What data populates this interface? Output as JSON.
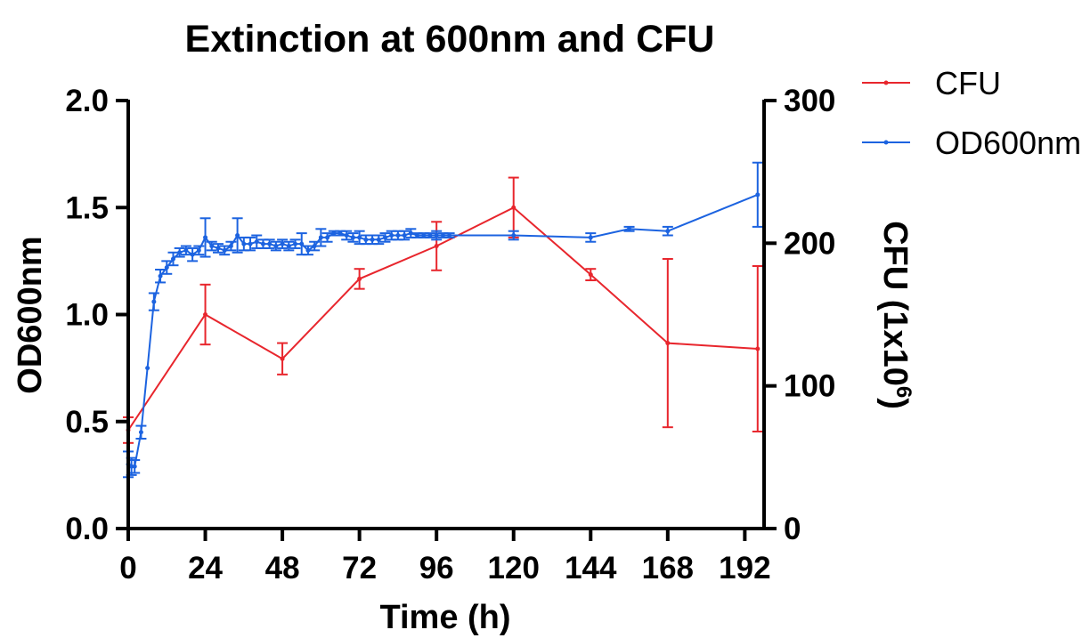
{
  "chart_data": {
    "type": "line",
    "title": "Extinction at 600nm and CFU",
    "xlabel": "Time (h)",
    "ylabel_left": "OD600nm",
    "ylabel_right_base": "CFU (1x10",
    "ylabel_right_sup": "6",
    "ylabel_right_close": ")",
    "xlim": [
      0,
      198
    ],
    "ylim_left": [
      0,
      2.0
    ],
    "ylim_right": [
      0,
      300
    ],
    "x_ticks": [
      0,
      24,
      48,
      72,
      96,
      120,
      144,
      168,
      192
    ],
    "x_tick_labels": [
      "0",
      "24",
      "48",
      "72",
      "96",
      "120",
      "144",
      "168",
      "192"
    ],
    "y_left_ticks": [
      0,
      0.5,
      1.0,
      1.5,
      2.0
    ],
    "y_left_tick_labels": [
      "0.0",
      "0.5",
      "1.0",
      "1.5",
      "2.0"
    ],
    "y_right_ticks": [
      0,
      100,
      200,
      300
    ],
    "y_right_tick_labels": [
      "0",
      "100",
      "200",
      "300"
    ],
    "grid": false,
    "legend_position": "top-right",
    "series": [
      {
        "name": "CFU",
        "axis": "right",
        "color": "#e8262d",
        "x": [
          0,
          24,
          48,
          72,
          96,
          120,
          144,
          168,
          196
        ],
        "y": [
          69,
          150,
          119,
          175,
          198,
          225,
          178,
          130,
          126
        ],
        "err": [
          9,
          21,
          11,
          7,
          17,
          21,
          4,
          59,
          58
        ]
      },
      {
        "name": "OD600nm",
        "axis": "left",
        "color": "#1c63e0",
        "x": [
          0,
          1,
          2,
          4,
          6,
          8,
          10,
          12,
          14,
          16,
          18,
          20,
          22,
          24,
          26,
          28,
          30,
          32,
          34,
          36,
          38,
          40,
          42,
          44,
          46,
          48,
          50,
          52,
          54,
          56,
          58,
          60,
          62,
          64,
          66,
          68,
          70,
          72,
          74,
          76,
          78,
          80,
          82,
          84,
          86,
          88,
          90,
          92,
          94,
          96,
          98,
          100,
          120,
          144,
          156,
          168,
          196
        ],
        "y": [
          0.3,
          0.29,
          0.29,
          0.45,
          0.75,
          1.06,
          1.18,
          1.22,
          1.26,
          1.29,
          1.3,
          1.28,
          1.3,
          1.36,
          1.32,
          1.31,
          1.3,
          1.32,
          1.37,
          1.33,
          1.33,
          1.34,
          1.33,
          1.33,
          1.32,
          1.33,
          1.32,
          1.33,
          1.33,
          1.3,
          1.32,
          1.36,
          1.36,
          1.38,
          1.38,
          1.37,
          1.36,
          1.36,
          1.35,
          1.35,
          1.35,
          1.36,
          1.37,
          1.37,
          1.37,
          1.38,
          1.37,
          1.37,
          1.37,
          1.37,
          1.37,
          1.37,
          1.37,
          1.36,
          1.4,
          1.39,
          1.56
        ],
        "err": [
          0.06,
          0.04,
          0.03,
          0.03,
          0.0,
          0.04,
          0.03,
          0.03,
          0.03,
          0.02,
          0.02,
          0.03,
          0.02,
          0.09,
          0.02,
          0.02,
          0.02,
          0.02,
          0.08,
          0.03,
          0.03,
          0.03,
          0.02,
          0.02,
          0.02,
          0.02,
          0.02,
          0.02,
          0.05,
          0.02,
          0.02,
          0.04,
          0.02,
          0.01,
          0.01,
          0.02,
          0.02,
          0.03,
          0.02,
          0.02,
          0.02,
          0.02,
          0.02,
          0.02,
          0.02,
          0.02,
          0.01,
          0.01,
          0.01,
          0.02,
          0.01,
          0.01,
          0.02,
          0.02,
          0.01,
          0.02,
          0.15
        ]
      }
    ]
  }
}
